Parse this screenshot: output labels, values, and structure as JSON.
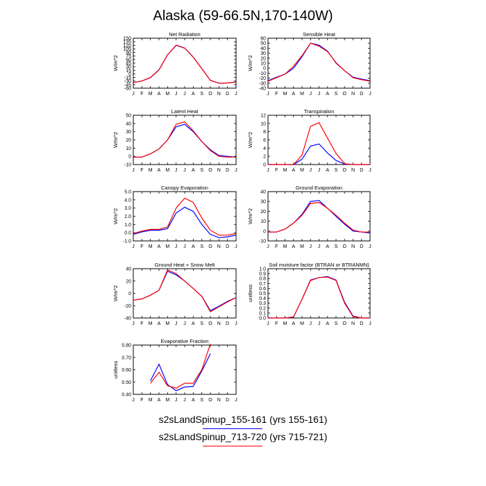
{
  "title": "Alaska (59-66.5N,170-140W)",
  "months": [
    "J",
    "F",
    "M",
    "A",
    "M",
    "J",
    "J",
    "A",
    "S",
    "O",
    "N",
    "D",
    "J"
  ],
  "colors": {
    "case1": "#0000ff",
    "case2": "#ff0000"
  },
  "legend": [
    {
      "label": "s2sLandSpinup_155-161 (yrs 155-161)",
      "color": "#0000ff"
    },
    {
      "label": "s2sLandSpinup_713-720 (yrs 715-721)",
      "color": "#ff0000"
    }
  ],
  "chart_data": [
    {
      "type": "line",
      "title": "Net Radiation",
      "ylabel": "W/m^2",
      "ylim": [
        -60,
        150
      ],
      "yticks": [
        "-60",
        "-45",
        "-30",
        "-15",
        "0",
        "15",
        "30",
        "45",
        "60",
        "75",
        "90",
        "105",
        "120",
        "135",
        "150"
      ],
      "series": [
        {
          "values": [
            -36,
            -30,
            -15,
            17,
            80,
            120,
            108,
            70,
            22,
            -27,
            -39,
            -38,
            -34
          ]
        },
        {
          "values": [
            -36,
            -30,
            -16,
            16,
            80,
            121,
            109,
            71,
            22,
            -27,
            -39,
            -38,
            -34
          ]
        }
      ]
    },
    {
      "type": "line",
      "title": "Sensible Heat",
      "ylabel": "W/m^2",
      "ylim": [
        -40,
        60
      ],
      "yticks": [
        "-40",
        "-30",
        "-20",
        "-10",
        "0",
        "10",
        "20",
        "30",
        "40",
        "50",
        "60"
      ],
      "series": [
        {
          "values": [
            -25,
            -18,
            -12,
            0,
            23,
            50,
            46,
            34,
            10,
            -5,
            -18,
            -22,
            -25
          ]
        },
        {
          "values": [
            -26,
            -19,
            -12,
            4,
            25,
            50,
            44,
            33,
            11,
            -5,
            -19,
            -23,
            -26
          ]
        }
      ]
    },
    {
      "type": "line",
      "title": "Latent Heat",
      "ylabel": "W/m^2",
      "ylim": [
        -10,
        50
      ],
      "yticks": [
        "-10",
        "0",
        "10",
        "20",
        "30",
        "40",
        "50"
      ],
      "series": [
        {
          "values": [
            -1,
            -1,
            3,
            9,
            20,
            36,
            39,
            30,
            18,
            8,
            1,
            0,
            -1
          ]
        },
        {
          "values": [
            -1,
            -1,
            3,
            9,
            20,
            39,
            42,
            31,
            18,
            7,
            0,
            -1,
            -1
          ]
        }
      ]
    },
    {
      "type": "line",
      "title": "Transpiration",
      "ylabel": "W/m^2",
      "ylim": [
        0,
        12
      ],
      "yticks": [
        "0",
        "2",
        "4",
        "6",
        "8",
        "10",
        "12"
      ],
      "series": [
        {
          "values": [
            0,
            0,
            0,
            0,
            1.3,
            4.5,
            5.0,
            2.8,
            1.0,
            0.1,
            0,
            0,
            0
          ]
        },
        {
          "values": [
            0,
            0,
            0,
            0,
            2.3,
            9.3,
            10.2,
            6.4,
            2.7,
            0.2,
            0,
            0,
            0
          ]
        }
      ]
    },
    {
      "type": "line",
      "title": "Canopy Evaporation",
      "ylabel": "W/m^2",
      "ylim": [
        -1.0,
        5.0
      ],
      "yticks": [
        "-1.0",
        "0.0",
        "1.0",
        "2.0",
        "3.0",
        "4.0",
        "5.0"
      ],
      "series": [
        {
          "values": [
            -0.2,
            0.1,
            0.3,
            0.3,
            0.5,
            2.4,
            3.1,
            2.6,
            1.0,
            -0.2,
            -0.6,
            -0.5,
            -0.3
          ]
        },
        {
          "values": [
            -0.1,
            0.2,
            0.4,
            0.4,
            0.7,
            3.0,
            4.2,
            3.7,
            1.8,
            0.3,
            -0.3,
            -0.3,
            -0.1
          ]
        }
      ]
    },
    {
      "type": "line",
      "title": "Ground Evaporation",
      "ylabel": "W/m^2",
      "ylim": [
        -10,
        40
      ],
      "yticks": [
        "-10",
        "0",
        "10",
        "20",
        "30",
        "40"
      ],
      "series": [
        {
          "values": [
            -1,
            -1,
            2,
            8,
            17,
            30,
            31,
            23,
            15,
            7,
            0,
            -1,
            -2
          ]
        },
        {
          "values": [
            -1,
            -1,
            2,
            8,
            16,
            28,
            29,
            23,
            16,
            8,
            1,
            -1,
            -1
          ]
        }
      ]
    },
    {
      "type": "line",
      "title": "Ground Heat + Snow Melt",
      "ylabel": "W/m^2",
      "ylim": [
        -40,
        40
      ],
      "yticks": [
        "-40",
        "-20",
        "0",
        "20",
        "40"
      ],
      "series": [
        {
          "values": [
            -11,
            -9,
            -3,
            5,
            36,
            30,
            20,
            8,
            -5,
            -28,
            -21,
            -13,
            -7
          ]
        },
        {
          "values": [
            -11,
            -9,
            -3,
            5,
            38,
            32,
            20,
            8,
            -5,
            -30,
            -22,
            -14,
            -7
          ]
        }
      ]
    },
    {
      "type": "line",
      "title": "Soil moisture factor (BTRAN or BTRANMN)",
      "ylabel": "unitless",
      "ylim": [
        0.0,
        1.0
      ],
      "yticks": [
        "0.0",
        "0.1",
        "0.2",
        "0.3",
        "0.4",
        "0.5",
        "0.6",
        "0.7",
        "0.8",
        "0.9",
        "1.0"
      ],
      "series": [
        {
          "values": [
            0.0,
            0.0,
            0.0,
            0.02,
            0.38,
            0.77,
            0.82,
            0.84,
            0.77,
            0.32,
            0.04,
            0.0,
            0.0
          ]
        },
        {
          "values": [
            0.0,
            0.0,
            0.0,
            0.02,
            0.38,
            0.76,
            0.82,
            0.83,
            0.76,
            0.3,
            0.03,
            0.0,
            0.0
          ]
        }
      ]
    },
    {
      "type": "line",
      "title": "Evaporative Fraction",
      "ylabel": "unitless",
      "ylim": [
        0.4,
        0.8
      ],
      "yticks": [
        "0.40",
        "0.50",
        "0.60",
        "0.70",
        "0.80"
      ],
      "series": [
        {
          "values": [
            null,
            null,
            0.51,
            0.645,
            0.48,
            0.43,
            0.46,
            0.465,
            0.59,
            0.73,
            null,
            null,
            null
          ]
        },
        {
          "values": [
            null,
            null,
            0.49,
            0.58,
            0.47,
            0.45,
            0.49,
            0.49,
            0.6,
            0.81,
            null,
            null,
            null
          ]
        }
      ]
    }
  ]
}
